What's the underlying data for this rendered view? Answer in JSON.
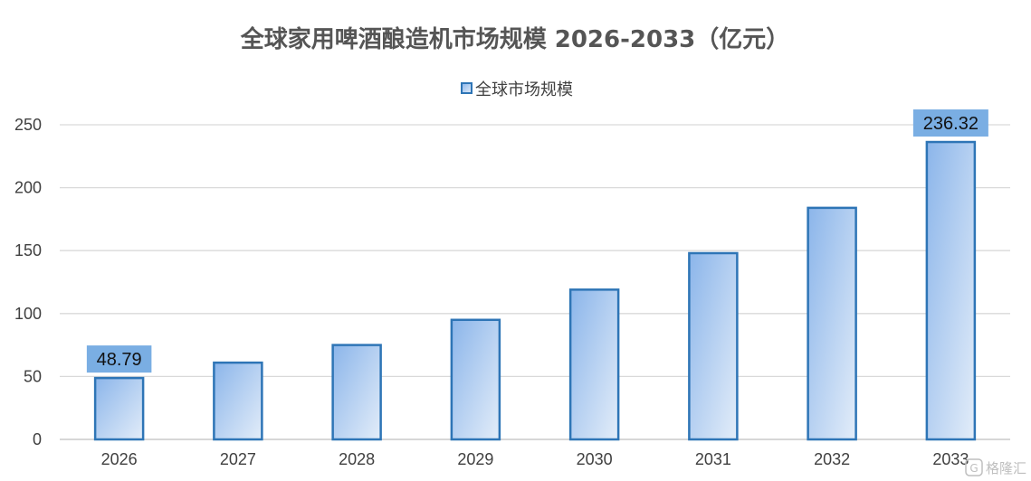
{
  "chart_data": {
    "type": "bar",
    "title": "全球家用啤酒酿造机市场规模 2026-2033（亿元）",
    "categories": [
      "2026",
      "2027",
      "2028",
      "2029",
      "2030",
      "2031",
      "2032",
      "2033"
    ],
    "series": [
      {
        "name": "全球市场规模",
        "values": [
          48.79,
          61,
          75,
          95,
          119,
          148,
          184,
          236.32
        ]
      }
    ],
    "data_labels": {
      "2026": "48.79",
      "2033": "236.32"
    },
    "ylim": [
      0,
      250
    ],
    "yticks": [
      0,
      50,
      100,
      150,
      200,
      250
    ],
    "grid": true,
    "legend_position": "top-center",
    "colors": {
      "bar_fill_top": "#8bb5ea",
      "bar_fill_bottom": "#e3edf9",
      "bar_border": "#2e75b6",
      "label_bg": "#7aaee3",
      "grid": "#d9d9d9"
    }
  },
  "watermark": {
    "text": "格隆汇",
    "icon": "gelonghui-logo-icon"
  }
}
